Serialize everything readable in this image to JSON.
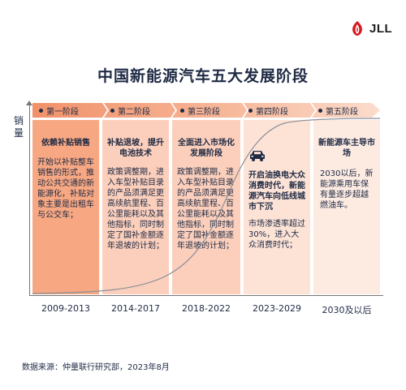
{
  "brand": {
    "logo_text": "JLL",
    "logo_icon": "jll-flame-logo",
    "color": "#d71920"
  },
  "title": "中国新能源汽车五大发展阶段",
  "y_axis_label": "销量",
  "colors": {
    "phase_bar_light": "#f8c7b0",
    "phase_bar_dark": "#f1916a",
    "panel_light": "#fde0d2",
    "panel_mid": "#fbd0bd",
    "panel_dark": "#f29a75",
    "curve": "#8a8f99"
  },
  "phases": [
    {
      "tab": "第一阶段",
      "title": "依赖补贴销售",
      "body": "开始以补贴整车销售的形式，推动公共交通的新能源化，补贴对象主要是出租车与公交车；",
      "period": "2009-2013"
    },
    {
      "tab": "第二阶段",
      "title": "补贴退坡，提升电池技术",
      "body": "政策调整期，进入车型补贴目录的产品须满足更高续航里程、百公里能耗以及其他指标，同时制定了国补金额逐年退坡的计划；",
      "period": "2014-2017"
    },
    {
      "tab": "第三阶段",
      "title": "全面进入市场化发展阶段",
      "body": "政策调整期，进入车型补贴目录的产品须满足更高续航里程、百公里能耗以及其他指标，同时制定了国补金额逐年退坡的计划；",
      "period": "2018-2022"
    },
    {
      "tab": "第四阶段",
      "title": "开启油换电大众消费时代，新能源汽车向低线城市下沉",
      "body": "市场渗透率超过30%，进入大众消费时代；",
      "period": "2023-2029",
      "icon": "car-icon"
    },
    {
      "tab": "第五阶段",
      "title": "新能源车主导市场",
      "body": "2030以后，新能源乘用车保有量逐步超越燃油车。",
      "period": "2030及以后"
    }
  ],
  "source": "数据来源：仲量联行研究部，2023年8月"
}
